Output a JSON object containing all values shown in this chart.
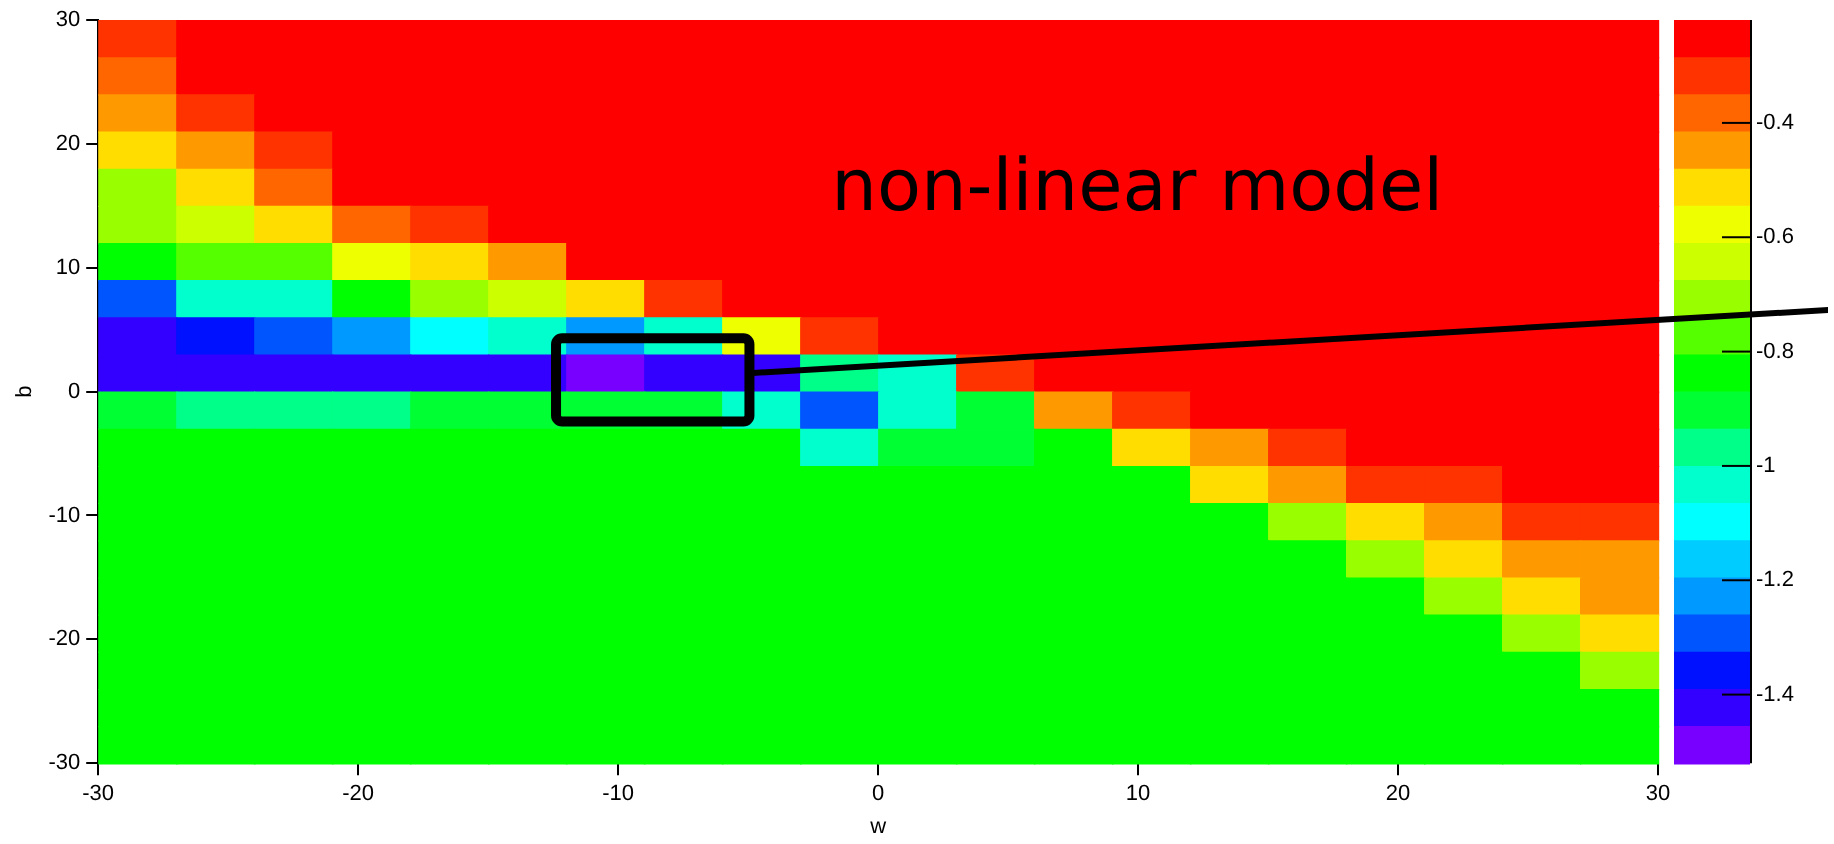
{
  "chart_data": {
    "type": "heatmap",
    "xlabel": "w",
    "ylabel": "b",
    "annotations": [
      "non-linear model"
    ],
    "x": [
      -28.5,
      -25.5,
      -22.5,
      -19.5,
      -16.5,
      -13.5,
      -10.5,
      -7.5,
      -4.5,
      -1.5,
      1.5,
      4.5,
      7.5,
      10.5,
      13.5,
      16.5,
      19.5,
      22.5,
      25.5,
      28.5
    ],
    "y": [
      28.5,
      25.5,
      22.5,
      19.5,
      16.5,
      13.5,
      10.5,
      7.5,
      4.5,
      1.5,
      -1.5,
      -4.5,
      -7.5,
      -10.5,
      -13.5,
      -16.5,
      -19.5,
      -22.5,
      -25.5,
      -28.5
    ],
    "xlim": [
      -30,
      30
    ],
    "xticks": [
      -30,
      -20,
      -10,
      0,
      10,
      20,
      30
    ],
    "ylim": [
      -30,
      30
    ],
    "yticks": [
      -30,
      -20,
      -10,
      0,
      10,
      20,
      30
    ],
    "clim": [
      -1.52,
      -0.22
    ],
    "cticks": [
      -0.4,
      -0.6,
      -0.8,
      -1,
      -1.2,
      -1.4
    ],
    "cells": [
      [
        -0.32,
        -0.25,
        -0.25,
        -0.25,
        -0.25,
        -0.25,
        -0.25,
        -0.25,
        -0.25,
        -0.25,
        -0.25,
        -0.25,
        -0.25,
        -0.25,
        -0.25,
        -0.25,
        -0.25,
        -0.25,
        -0.25,
        -0.25
      ],
      [
        -0.38,
        -0.28,
        -0.25,
        -0.25,
        -0.25,
        -0.25,
        -0.25,
        -0.25,
        -0.25,
        -0.25,
        -0.25,
        -0.25,
        -0.25,
        -0.25,
        -0.25,
        -0.25,
        -0.25,
        -0.25,
        -0.25,
        -0.25
      ],
      [
        -0.42,
        -0.34,
        -0.25,
        -0.25,
        -0.25,
        -0.25,
        -0.25,
        -0.25,
        -0.25,
        -0.25,
        -0.25,
        -0.25,
        -0.25,
        -0.25,
        -0.25,
        -0.25,
        -0.25,
        -0.25,
        -0.25,
        -0.25
      ],
      [
        -0.53,
        -0.42,
        -0.32,
        -0.25,
        -0.25,
        -0.25,
        -0.25,
        -0.25,
        -0.25,
        -0.25,
        -0.25,
        -0.25,
        -0.25,
        -0.25,
        -0.25,
        -0.25,
        -0.25,
        -0.25,
        -0.25,
        -0.25
      ],
      [
        -0.68,
        -0.53,
        -0.4,
        -0.27,
        -0.25,
        -0.25,
        -0.25,
        -0.25,
        -0.25,
        -0.25,
        -0.25,
        -0.25,
        -0.25,
        -0.25,
        -0.25,
        -0.25,
        -0.25,
        -0.25,
        -0.25,
        -0.25
      ],
      [
        -0.72,
        -0.66,
        -0.53,
        -0.4,
        -0.3,
        -0.25,
        -0.25,
        -0.25,
        -0.25,
        -0.25,
        -0.25,
        -0.25,
        -0.25,
        -0.25,
        -0.25,
        -0.25,
        -0.25,
        -0.25,
        -0.25,
        -0.25
      ],
      [
        -0.85,
        -0.8,
        -0.75,
        -0.55,
        -0.5,
        -0.42,
        -0.25,
        -0.25,
        -0.25,
        -0.25,
        -0.25,
        -0.25,
        -0.25,
        -0.25,
        -0.25,
        -0.25,
        -0.25,
        -0.25,
        -0.25,
        -0.25
      ],
      [
        -1.3,
        -1.05,
        -1,
        -0.82,
        -0.7,
        -0.62,
        -0.5,
        -0.33,
        -0.25,
        -0.25,
        -0.25,
        -0.25,
        -0.25,
        -0.25,
        -0.25,
        -0.25,
        -0.25,
        -0.25,
        -0.25,
        -0.25
      ],
      [
        -1.45,
        -1.35,
        -1.3,
        -1.2,
        -1.1,
        -1.05,
        -1.25,
        -1.05,
        -0.55,
        -0.35,
        -0.25,
        -0.25,
        -0.25,
        -0.25,
        -0.25,
        -0.25,
        -0.25,
        -0.25,
        -0.25,
        -0.25
      ],
      [
        -1.4,
        -1.45,
        -1.45,
        -1.45,
        -1.45,
        -1.45,
        -1.48,
        -1.45,
        -1.4,
        -0.95,
        -1.05,
        -0.32,
        -0.25,
        -0.25,
        -0.25,
        -0.25,
        -0.25,
        -0.25,
        -0.25,
        -0.25
      ],
      [
        -0.92,
        -0.95,
        -0.95,
        -0.95,
        -0.93,
        -0.9,
        -0.9,
        -0.92,
        -1,
        -1.3,
        -1.05,
        -0.9,
        -0.42,
        -0.32,
        -0.25,
        -0.25,
        -0.25,
        -0.25,
        -0.25,
        -0.25
      ],
      [
        -0.83,
        -0.83,
        -0.83,
        -0.83,
        -0.83,
        -0.83,
        -0.83,
        -0.83,
        -0.83,
        -1,
        -0.92,
        -0.92,
        -0.83,
        -0.53,
        -0.42,
        -0.32,
        -0.25,
        -0.25,
        -0.25,
        -0.25
      ],
      [
        -0.83,
        -0.83,
        -0.83,
        -0.83,
        -0.83,
        -0.83,
        -0.83,
        -0.83,
        -0.83,
        -0.83,
        -0.83,
        -0.83,
        -0.83,
        -0.83,
        -0.53,
        -0.42,
        -0.32,
        -0.32,
        -0.25,
        -0.25
      ],
      [
        -0.83,
        -0.83,
        -0.83,
        -0.83,
        -0.83,
        -0.83,
        -0.83,
        -0.83,
        -0.83,
        -0.83,
        -0.83,
        -0.83,
        -0.83,
        -0.83,
        -0.83,
        -0.7,
        -0.53,
        -0.42,
        -0.32,
        -0.32
      ],
      [
        -0.83,
        -0.83,
        -0.83,
        -0.83,
        -0.83,
        -0.83,
        -0.83,
        -0.83,
        -0.83,
        -0.83,
        -0.83,
        -0.83,
        -0.83,
        -0.83,
        -0.83,
        -0.83,
        -0.7,
        -0.53,
        -0.42,
        -0.42
      ],
      [
        -0.83,
        -0.83,
        -0.83,
        -0.83,
        -0.83,
        -0.83,
        -0.83,
        -0.83,
        -0.83,
        -0.83,
        -0.83,
        -0.83,
        -0.83,
        -0.83,
        -0.83,
        -0.83,
        -0.83,
        -0.7,
        -0.53,
        -0.42
      ],
      [
        -0.83,
        -0.83,
        -0.83,
        -0.83,
        -0.83,
        -0.83,
        -0.83,
        -0.83,
        -0.83,
        -0.83,
        -0.83,
        -0.83,
        -0.83,
        -0.83,
        -0.83,
        -0.83,
        -0.83,
        -0.83,
        -0.7,
        -0.53
      ],
      [
        -0.83,
        -0.83,
        -0.83,
        -0.83,
        -0.83,
        -0.83,
        -0.83,
        -0.83,
        -0.83,
        -0.83,
        -0.83,
        -0.83,
        -0.83,
        -0.83,
        -0.83,
        -0.83,
        -0.83,
        -0.83,
        -0.83,
        -0.7
      ],
      [
        -0.83,
        -0.83,
        -0.83,
        -0.83,
        -0.83,
        -0.83,
        -0.83,
        -0.83,
        -0.83,
        -0.83,
        -0.83,
        -0.83,
        -0.83,
        -0.83,
        -0.83,
        -0.83,
        -0.83,
        -0.83,
        -0.83,
        -0.83
      ],
      [
        -0.83,
        -0.83,
        -0.83,
        -0.83,
        -0.83,
        -0.83,
        -0.83,
        -0.83,
        -0.83,
        -0.83,
        -0.83,
        -0.83,
        -0.83,
        -0.83,
        -0.83,
        -0.83,
        -0.83,
        -0.83,
        -0.83,
        -0.83
      ]
    ]
  }
}
